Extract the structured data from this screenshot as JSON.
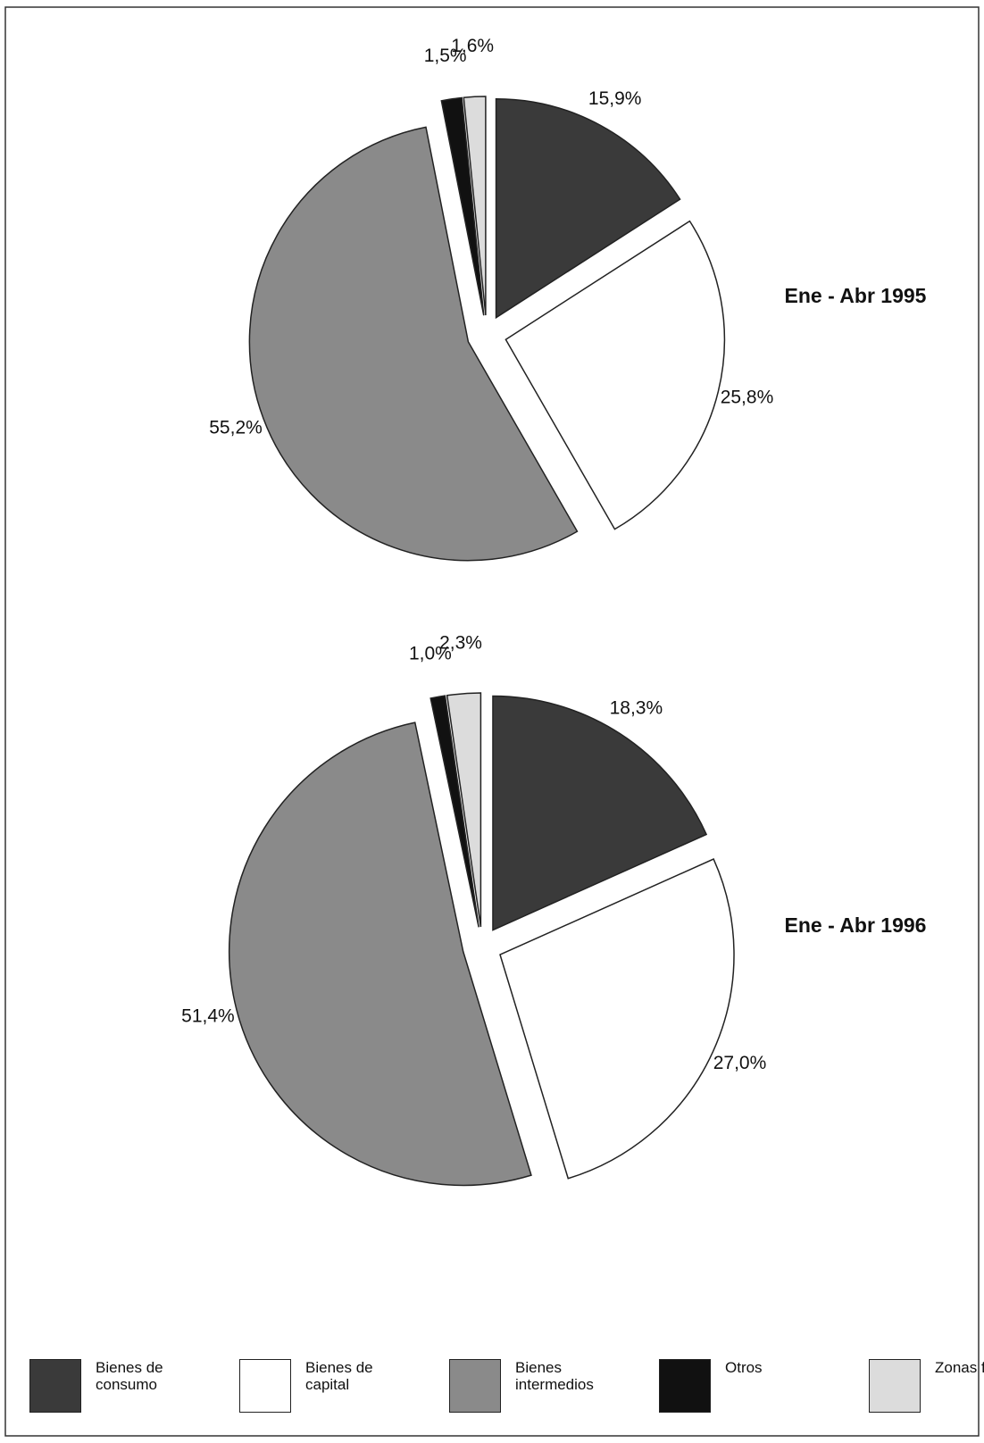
{
  "chart_data": [
    {
      "type": "pie",
      "title": "Ene - Abr 1995",
      "categories": [
        "Bienes de consumo",
        "Bienes de capital",
        "Bienes intermedios",
        "Otros",
        "Zonas francas"
      ],
      "values": [
        15.9,
        25.8,
        55.2,
        1.5,
        1.6
      ],
      "value_labels": [
        "15,9%",
        "25,8%",
        "55,2%",
        "1,5%",
        "1,6%"
      ],
      "colors": [
        "#3a3a3a",
        "#ffffff",
        "#8a8a8a",
        "#111111",
        "#dcdcdc"
      ]
    },
    {
      "type": "pie",
      "title": "Ene - Abr 1996",
      "categories": [
        "Bienes de consumo",
        "Bienes de capital",
        "Bienes intermedios",
        "Otros",
        "Zonas francas"
      ],
      "values": [
        18.3,
        27.0,
        51.4,
        1.0,
        2.3
      ],
      "value_labels": [
        "18,3%",
        "27,0%",
        "51,4%",
        "1,0%",
        "2,3%"
      ],
      "colors": [
        "#3a3a3a",
        "#ffffff",
        "#8a8a8a",
        "#111111",
        "#dcdcdc"
      ]
    }
  ]
}
